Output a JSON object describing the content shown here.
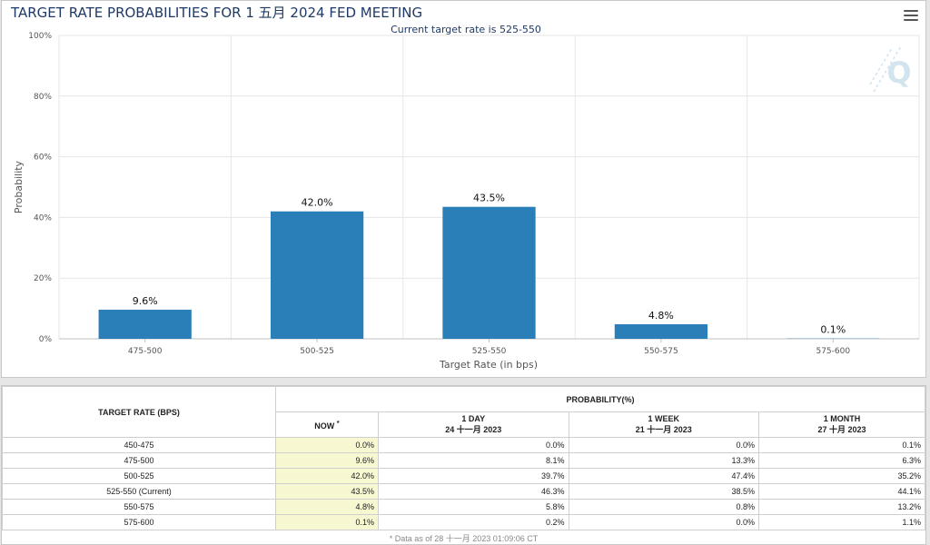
{
  "header": {
    "title": "TARGET RATE PROBABILITIES FOR 1 五月 2024 FED MEETING",
    "subtitle": "Current target rate is 525-550"
  },
  "chart_data": {
    "type": "bar",
    "categories": [
      "475-500",
      "500-525",
      "525-550",
      "550-575",
      "575-600"
    ],
    "values": [
      9.6,
      42.0,
      43.5,
      4.8,
      0.1
    ],
    "data_labels": [
      "9.6%",
      "42.0%",
      "43.5%",
      "4.8%",
      "0.1%"
    ],
    "title": "TARGET RATE PROBABILITIES FOR 1 五月 2024 FED MEETING",
    "subtitle": "Current target rate is 525-550",
    "xlabel": "Target Rate (in bps)",
    "ylabel": "Probability",
    "ylim": [
      0,
      100
    ],
    "yticks": [
      "0%",
      "20%",
      "40%",
      "60%",
      "80%",
      "100%"
    ],
    "grid": "vertical",
    "bar_color": "#2a7fb8"
  },
  "table": {
    "rate_header": "TARGET RATE (BPS)",
    "prob_header": "PROBABILITY(%)",
    "now_header": "NOW",
    "now_marker": "*",
    "columns": [
      {
        "line1": "1 DAY",
        "line2": "24 十一月 2023"
      },
      {
        "line1": "1 WEEK",
        "line2": "21 十一月 2023"
      },
      {
        "line1": "1 MONTH",
        "line2": "27 十月 2023"
      }
    ],
    "rows": [
      {
        "rate": "450-475",
        "now": "0.0%",
        "day": "0.0%",
        "week": "0.0%",
        "month": "0.1%"
      },
      {
        "rate": "475-500",
        "now": "9.6%",
        "day": "8.1%",
        "week": "13.3%",
        "month": "6.3%"
      },
      {
        "rate": "500-525",
        "now": "42.0%",
        "day": "39.7%",
        "week": "47.4%",
        "month": "35.2%"
      },
      {
        "rate": "525-550 (Current)",
        "now": "43.5%",
        "day": "46.3%",
        "week": "38.5%",
        "month": "44.1%"
      },
      {
        "rate": "550-575",
        "now": "4.8%",
        "day": "5.8%",
        "week": "0.8%",
        "month": "13.2%"
      },
      {
        "rate": "575-600",
        "now": "0.1%",
        "day": "0.2%",
        "week": "0.0%",
        "month": "1.1%"
      }
    ],
    "footnote": "* Data as of 28 十一月 2023 01:09:06 CT"
  },
  "colors": {
    "title": "#1f3a66",
    "now_cell": "#f7f7d2",
    "watermark": "#cfe3ee"
  },
  "icons": {
    "menu": "hamburger-menu-icon",
    "watermark": "q-logo-icon"
  }
}
